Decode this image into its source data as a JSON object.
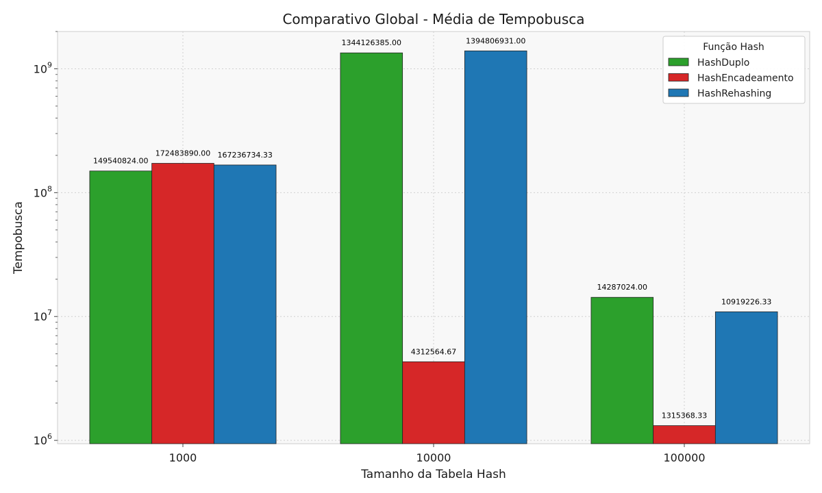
{
  "chart_data": {
    "type": "bar",
    "title": "Comparativo Global - Média de Tempobusca",
    "xlabel": "Tamanho da Tabela Hash",
    "ylabel": "Tempobusca",
    "categories": [
      "1000",
      "10000",
      "100000"
    ],
    "yscale": "log",
    "ylim": [
      940000,
      2000000000
    ],
    "grid": true,
    "legend": {
      "title": "Função Hash",
      "placement": "top-right"
    },
    "y_tick_values": [
      1000000,
      10000000,
      100000000,
      1000000000
    ],
    "y_tick_labels": [
      {
        "base": "10",
        "exp": "6"
      },
      {
        "base": "10",
        "exp": "7"
      },
      {
        "base": "10",
        "exp": "8"
      },
      {
        "base": "10",
        "exp": "9"
      }
    ],
    "series": [
      {
        "name": "HashDuplo",
        "color": "#2ca02c",
        "values": [
          149540824.0,
          1344126385.0,
          14287024.0
        ],
        "labels": [
          "149540824.00",
          "1344126385.00",
          "14287024.00"
        ]
      },
      {
        "name": "HashEncadeamento",
        "color": "#d62728",
        "values": [
          172483890.0,
          4312564.67,
          1315368.33
        ],
        "labels": [
          "172483890.00",
          "4312564.67",
          "1315368.33"
        ]
      },
      {
        "name": "HashRehashing",
        "color": "#1f77b4",
        "values": [
          167236734.33,
          1394806931.0,
          10919226.33
        ],
        "labels": [
          "167236734.33",
          "1394806931.00",
          "10919226.33"
        ]
      }
    ]
  }
}
